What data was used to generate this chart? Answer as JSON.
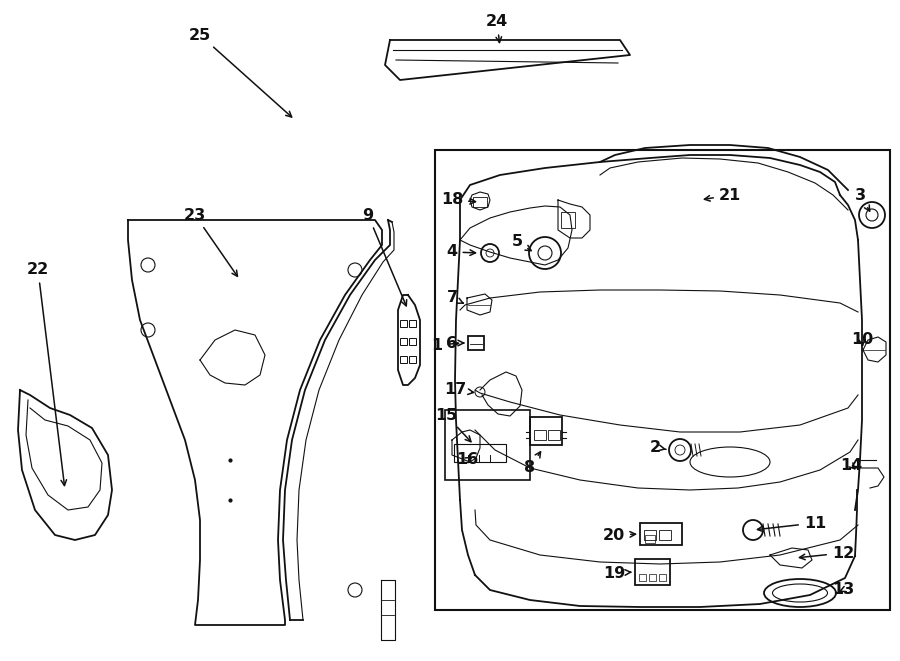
{
  "bg_color": "#ffffff",
  "line_color": "#111111",
  "fig_width": 9.0,
  "fig_height": 6.61,
  "dpi": 100
}
